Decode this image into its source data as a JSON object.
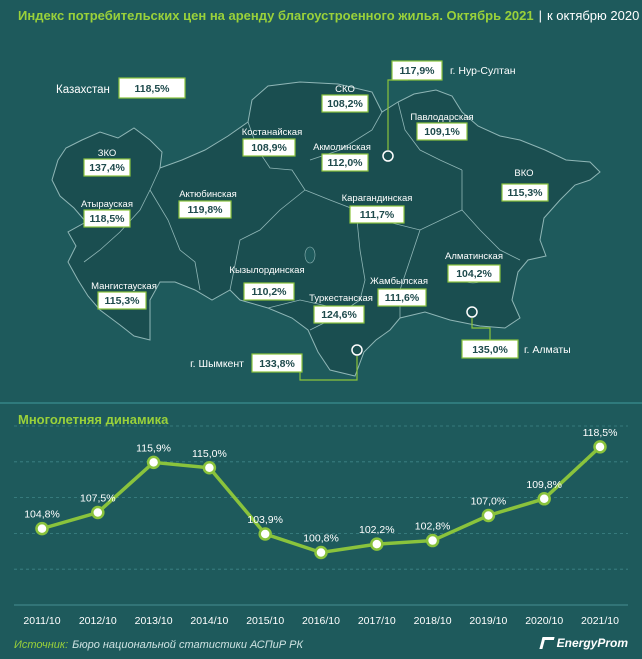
{
  "header": {
    "title": "Индекс потребительских цен на аренду благоустроенного жилья. Октябрь 2021",
    "separator": "|",
    "subtitle": "к октябрю 2020"
  },
  "colors": {
    "accent": "#9ad13a",
    "background": "#1e5a5c",
    "map": "#1a4e50",
    "border": "#8ac33c"
  },
  "map": {
    "country_label": "Казахстан",
    "country_value": "118,5%",
    "regions": [
      {
        "id": "zko",
        "label": "ЗКО",
        "value": "137,4%"
      },
      {
        "id": "atyrau",
        "label": "Атырауская",
        "value": "118,5%"
      },
      {
        "id": "mangistau",
        "label": "Мангистауская",
        "value": "115,3%"
      },
      {
        "id": "aktobe",
        "label": "Актюбинская",
        "value": "119,8%"
      },
      {
        "id": "kostanay",
        "label": "Костанайская",
        "value": "108,9%"
      },
      {
        "id": "sko",
        "label": "СКО",
        "value": "108,2%"
      },
      {
        "id": "akmola",
        "label": "Акмолинская",
        "value": "112,0%"
      },
      {
        "id": "pavlodar",
        "label": "Павлодарская",
        "value": "109,1%"
      },
      {
        "id": "vko",
        "label": "ВКО",
        "value": "115,3%"
      },
      {
        "id": "karaganda",
        "label": "Карагандинская",
        "value": "111,7%"
      },
      {
        "id": "kyzylorda",
        "label": "Кызылординская",
        "value": "110,2%"
      },
      {
        "id": "turkestan",
        "label": "Туркестанская",
        "value": "124,6%"
      },
      {
        "id": "zhambyl",
        "label": "Жамбылская",
        "value": "111,6%"
      },
      {
        "id": "almaty_obl",
        "label": "Алматинская",
        "value": "104,2%"
      }
    ],
    "cities": [
      {
        "id": "nursultan",
        "label": "г. Нур-Султан",
        "value": "117,9%"
      },
      {
        "id": "almaty",
        "label": "г. Алматы",
        "value": "135,0%"
      },
      {
        "id": "shymkent",
        "label": "г. Шымкент",
        "value": "133,8%"
      }
    ]
  },
  "dynamics": {
    "section_title": "Многолетняя динамика"
  },
  "chart_data": {
    "type": "line",
    "title": "Многолетняя динамика",
    "categories": [
      "2011/10",
      "2012/10",
      "2013/10",
      "2014/10",
      "2015/10",
      "2016/10",
      "2017/10",
      "2018/10",
      "2019/10",
      "2020/10",
      "2021/10"
    ],
    "values": [
      104.8,
      107.5,
      115.9,
      115.0,
      103.9,
      100.8,
      102.2,
      102.8,
      107.0,
      109.8,
      118.5
    ],
    "data_labels": [
      "104,8%",
      "107,5%",
      "115,9%",
      "115,0%",
      "103,9%",
      "100,8%",
      "102,2%",
      "102,8%",
      "107,0%",
      "109,8%",
      "118,5%"
    ],
    "ylim": [
      92,
      122
    ],
    "grid": true,
    "line_color": "#8ac33c"
  },
  "footer": {
    "source_label": "Источник:",
    "source_text": "Бюро национальной статистики АСПиР РК",
    "logo": "EnergyProm"
  }
}
